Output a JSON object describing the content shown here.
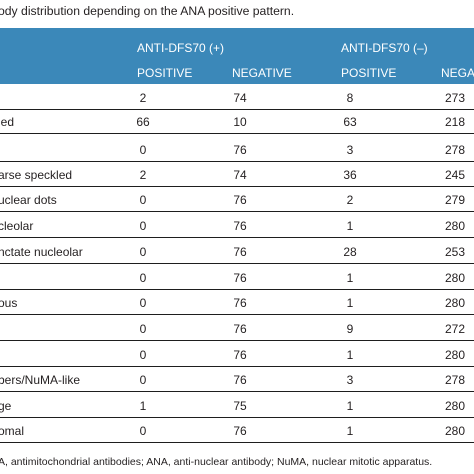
{
  "caption": "ody distribution depending on the ANA positive pattern.",
  "header": {
    "group1": "ANTI-DFS70 (+)",
    "group2": "ANTI-DFS70 (–)",
    "positive1": "POSITIVE",
    "negative1": "NEGATIVE",
    "positive2": "POSITIVE",
    "negative2": "NEGAT"
  },
  "rows": [
    {
      "label": "",
      "pos1": "2",
      "neg1": "74",
      "pos2": "8",
      "neg2": "273"
    },
    {
      "label": "led",
      "pos1": "66",
      "neg1": "10",
      "pos2": "63",
      "neg2": "218"
    },
    {
      "label": "",
      "pos1": "0",
      "neg1": "76",
      "pos2": "3",
      "neg2": "278"
    },
    {
      "label": "arse speckled",
      "pos1": "2",
      "neg1": "74",
      "pos2": "36",
      "neg2": "245"
    },
    {
      "label": "uclear dots",
      "pos1": "0",
      "neg1": "76",
      "pos2": "2",
      "neg2": "279"
    },
    {
      "label": "cleolar",
      "pos1": "0",
      "neg1": "76",
      "pos2": "1",
      "neg2": "280"
    },
    {
      "label": "nctate nucleolar",
      "pos1": "0",
      "neg1": "76",
      "pos2": "28",
      "neg2": "253"
    },
    {
      "label": "",
      "pos1": "0",
      "neg1": "76",
      "pos2": "1",
      "neg2": "280"
    },
    {
      "label": "ous",
      "pos1": "0",
      "neg1": "76",
      "pos2": "1",
      "neg2": "280"
    },
    {
      "label": "",
      "pos1": "0",
      "neg1": "76",
      "pos2": "9",
      "neg2": "272"
    },
    {
      "label": "",
      "pos1": "0",
      "neg1": "76",
      "pos2": "1",
      "neg2": "280"
    },
    {
      "label": "bers/NuMA-like",
      "pos1": "0",
      "neg1": "76",
      "pos2": "3",
      "neg2": "278"
    },
    {
      "label": "ge",
      "pos1": "1",
      "neg1": "75",
      "pos2": "1",
      "neg2": "280"
    },
    {
      "label": "omal",
      "pos1": "0",
      "neg1": "76",
      "pos2": "1",
      "neg2": "280"
    }
  ],
  "footnote": "A, antimitochondrial antibodies; ANA, anti-nuclear antibody; NuMA, nuclear mitotic apparatus.",
  "colors": {
    "header_bg": "#3b88b9",
    "text": "#231f20",
    "rule": "#1e1e1e"
  }
}
